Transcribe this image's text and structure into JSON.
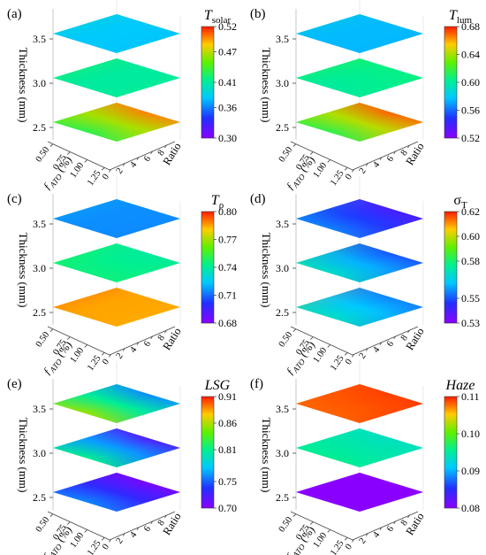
{
  "chart_data": [
    {
      "type": "surface",
      "panel_label": "(a)",
      "colorbar_symbol": "T",
      "colorbar_subscript": "solar",
      "colorbar_italic": true,
      "colorbar_ticks": [
        "0.52",
        "0.47",
        "0.41",
        "0.36",
        "0.30"
      ],
      "colorbar_range": [
        0.3,
        0.52
      ],
      "zlabel": "Thickness (mm)",
      "xlabel": "ƒ",
      "xlabel_sub": "ATO",
      "xlabel_rest": " (%)",
      "ylabel": "Ratio",
      "z_ticks": [
        "2.5",
        "3.0",
        "3.5"
      ],
      "x_ticks": [
        "0.50",
        "0.75",
        "1.00",
        "1.25"
      ],
      "y_ticks": [
        "0",
        "2",
        "4",
        "6",
        "8"
      ],
      "layers": [
        {
          "thickness": 2.5,
          "corners": {
            "back": 0.52,
            "left": 0.46,
            "front": 0.4,
            "right": 0.48
          }
        },
        {
          "thickness": 3.0,
          "corners": {
            "back": 0.4,
            "left": 0.45,
            "front": 0.37,
            "right": 0.42
          }
        },
        {
          "thickness": 3.5,
          "corners": {
            "back": 0.39,
            "left": 0.42,
            "front": 0.34,
            "right": 0.37
          }
        }
      ]
    },
    {
      "type": "surface",
      "panel_label": "(b)",
      "colorbar_symbol": "T",
      "colorbar_subscript": "lum",
      "colorbar_italic": true,
      "colorbar_ticks": [
        "0.68",
        "0.64",
        "0.60",
        "0.56",
        "0.52"
      ],
      "colorbar_range": [
        0.52,
        0.68
      ],
      "zlabel": "Thickness (mm)",
      "xlabel": "ƒ",
      "xlabel_sub": "ATO",
      "xlabel_rest": " (%)",
      "ylabel": "Ratio",
      "z_ticks": [
        "2.5",
        "3.0",
        "3.5"
      ],
      "x_ticks": [
        "0.50",
        "0.75",
        "1.00",
        "1.25"
      ],
      "y_ticks": [
        "0",
        "2",
        "4",
        "6",
        "8"
      ],
      "layers": [
        {
          "thickness": 2.5,
          "corners": {
            "back": 0.68,
            "left": 0.63,
            "front": 0.6,
            "right": 0.66
          }
        },
        {
          "thickness": 3.0,
          "corners": {
            "back": 0.6,
            "left": 0.63,
            "front": 0.57,
            "right": 0.61
          }
        },
        {
          "thickness": 3.5,
          "corners": {
            "back": 0.58,
            "left": 0.6,
            "front": 0.55,
            "right": 0.57
          }
        }
      ]
    },
    {
      "type": "surface",
      "panel_label": "(c)",
      "colorbar_symbol": "T",
      "colorbar_subscript": "ρ",
      "colorbar_italic": true,
      "colorbar_ticks": [
        "0.80",
        "0.77",
        "0.74",
        "0.71",
        "0.68"
      ],
      "colorbar_range": [
        0.68,
        0.8
      ],
      "zlabel": "Thickness (mm)",
      "xlabel": "ƒ",
      "xlabel_sub": "ATO",
      "xlabel_rest": " (%)",
      "ylabel": "Ratio",
      "z_ticks": [
        "2.5",
        "3.0",
        "3.5"
      ],
      "x_ticks": [
        "0.50",
        "0.75",
        "1.00",
        "1.25"
      ],
      "y_ticks": [
        "0",
        "2",
        "4",
        "6",
        "8"
      ],
      "layers": [
        {
          "thickness": 2.5,
          "corners": {
            "back": 0.79,
            "left": 0.8,
            "front": 0.77,
            "right": 0.78
          }
        },
        {
          "thickness": 3.0,
          "corners": {
            "back": 0.73,
            "left": 0.76,
            "front": 0.73,
            "right": 0.75
          }
        },
        {
          "thickness": 3.5,
          "corners": {
            "back": 0.72,
            "left": 0.73,
            "front": 0.7,
            "right": 0.71
          }
        }
      ]
    },
    {
      "type": "surface",
      "panel_label": "(d)",
      "colorbar_symbol": "σ",
      "colorbar_subscript": "T",
      "colorbar_italic": false,
      "colorbar_ticks": [
        "0.62",
        "0.60",
        "0.58",
        "0.55",
        "0.53"
      ],
      "colorbar_range": [
        0.53,
        0.62
      ],
      "zlabel": "Thickness (mm)",
      "xlabel": "ƒ",
      "xlabel_sub": "ATO",
      "xlabel_rest": " (%)",
      "ylabel": "Ratio",
      "z_ticks": [
        "2.5",
        "3.0",
        "3.5"
      ],
      "x_ticks": [
        "0.50",
        "0.75",
        "1.00",
        "1.25"
      ],
      "y_ticks": [
        "0",
        "2",
        "4",
        "6",
        "8"
      ],
      "layers": [
        {
          "thickness": 2.5,
          "corners": {
            "back": 0.57,
            "left": 0.61,
            "front": 0.53,
            "right": 0.54
          }
        },
        {
          "thickness": 3.0,
          "corners": {
            "back": 0.56,
            "left": 0.59,
            "front": 0.55,
            "right": 0.54
          }
        },
        {
          "thickness": 3.5,
          "corners": {
            "back": 0.55,
            "left": 0.57,
            "front": 0.54,
            "right": 0.53
          }
        }
      ]
    },
    {
      "type": "surface",
      "panel_label": "(e)",
      "colorbar_symbol": "LSG",
      "colorbar_subscript": "",
      "colorbar_italic": true,
      "colorbar_ticks": [
        "0.91",
        "0.86",
        "0.81",
        "0.75",
        "0.70"
      ],
      "colorbar_range": [
        0.7,
        0.91
      ],
      "zlabel": "Thickness (mm)",
      "xlabel": "ƒ",
      "xlabel_sub": "ATO",
      "xlabel_rest": " (%)",
      "ylabel": "Ratio",
      "z_ticks": [
        "2.5",
        "3.0",
        "3.5"
      ],
      "x_ticks": [
        "0.50",
        "0.75",
        "1.00",
        "1.25"
      ],
      "y_ticks": [
        "0",
        "2",
        "4",
        "6",
        "8"
      ],
      "layers": [
        {
          "thickness": 2.5,
          "corners": {
            "back": 0.7,
            "left": 0.72,
            "front": 0.8,
            "right": 0.71
          }
        },
        {
          "thickness": 3.0,
          "corners": {
            "back": 0.71,
            "left": 0.76,
            "front": 0.86,
            "right": 0.73
          }
        },
        {
          "thickness": 3.5,
          "corners": {
            "back": 0.75,
            "left": 0.8,
            "front": 0.91,
            "right": 0.77
          }
        }
      ]
    },
    {
      "type": "surface",
      "panel_label": "(f)",
      "colorbar_symbol": "Haze",
      "colorbar_subscript": "",
      "colorbar_italic": true,
      "colorbar_ticks": [
        "0.11",
        "0.10",
        "0.09",
        "0.08"
      ],
      "colorbar_range": [
        0.08,
        0.11
      ],
      "zlabel": "Thickness (mm)",
      "xlabel": "ƒ",
      "xlabel_sub": "ATO",
      "xlabel_rest": " (%)",
      "ylabel": "Ratio",
      "z_ticks": [
        "2.5",
        "3.0",
        "3.5"
      ],
      "x_ticks": [
        "0.50",
        "0.75",
        "1.00",
        "1.25"
      ],
      "y_ticks": [
        "0",
        "2",
        "4",
        "6",
        "8"
      ],
      "layers": [
        {
          "thickness": 2.5,
          "corners": {
            "back": 0.08,
            "left": 0.08,
            "front": 0.08,
            "right": 0.08
          }
        },
        {
          "thickness": 3.0,
          "corners": {
            "back": 0.093,
            "left": 0.095,
            "front": 0.096,
            "right": 0.094
          }
        },
        {
          "thickness": 3.5,
          "corners": {
            "back": 0.108,
            "left": 0.107,
            "front": 0.109,
            "right": 0.11
          }
        }
      ]
    }
  ]
}
